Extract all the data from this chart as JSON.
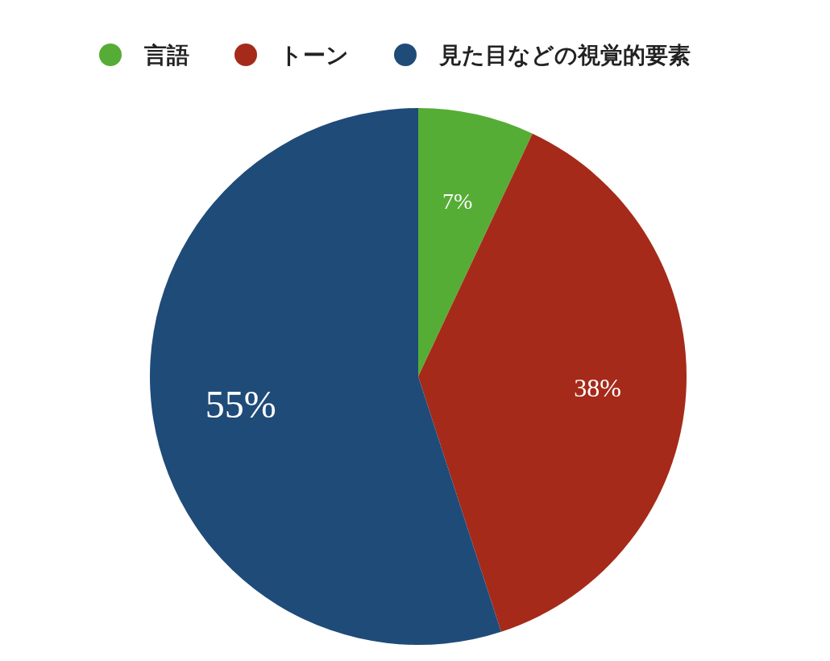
{
  "chart_data": {
    "type": "pie",
    "categories": [
      "言語",
      "トーン",
      "見た目などの視覚的要素"
    ],
    "values": [
      7,
      38,
      55
    ],
    "colors": [
      "#56ad35",
      "#a52a1a",
      "#1f4b79"
    ],
    "value_labels": [
      "7%",
      "38%",
      "55%"
    ],
    "legend": "top"
  }
}
